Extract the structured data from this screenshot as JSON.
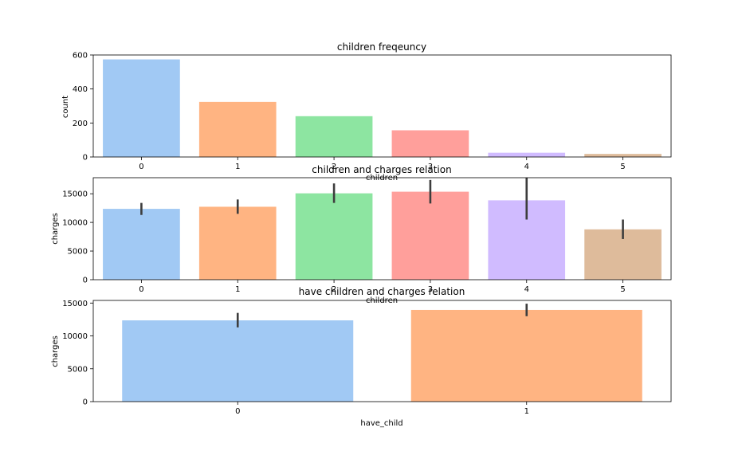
{
  "chart_data": [
    {
      "type": "bar",
      "title": "children freqeuncy",
      "xlabel": "children",
      "ylabel": "count",
      "categories": [
        "0",
        "1",
        "2",
        "3",
        "4",
        "5"
      ],
      "values": [
        574,
        324,
        240,
        157,
        25,
        18
      ],
      "ylim": [
        0,
        600
      ],
      "yticks": [
        "0",
        "200",
        "400",
        "600"
      ],
      "colors": [
        "#a1c9f4",
        "#ffb482",
        "#8de5a1",
        "#ff9f9b",
        "#d0bbff",
        "#debb9b"
      ],
      "grid": false
    },
    {
      "type": "bar",
      "title": "children and charges relation",
      "xlabel": "children",
      "ylabel": "charges",
      "categories": [
        "0",
        "1",
        "2",
        "3",
        "4",
        "5"
      ],
      "values": [
        12366,
        12731,
        15074,
        15355,
        13851,
        8786
      ],
      "error_bars": [
        [
          11300,
          13400
        ],
        [
          11500,
          14000
        ],
        [
          13400,
          16800
        ],
        [
          13300,
          17400
        ],
        [
          10500,
          17800
        ],
        [
          7100,
          10500
        ]
      ],
      "ylim": [
        0,
        17800
      ],
      "yticks": [
        "0",
        "5000",
        "10000",
        "15000"
      ],
      "colors": [
        "#a1c9f4",
        "#ffb482",
        "#8de5a1",
        "#ff9f9b",
        "#d0bbff",
        "#debb9b"
      ],
      "grid": false
    },
    {
      "type": "bar",
      "title": "have children and charges relation",
      "xlabel": "have_child",
      "ylabel": "charges",
      "categories": [
        "0",
        "1"
      ],
      "values": [
        12366,
        13950
      ],
      "error_bars": [
        [
          11300,
          13500
        ],
        [
          13000,
          14900
        ]
      ],
      "ylim": [
        0,
        15400
      ],
      "yticks": [
        "0",
        "5000",
        "10000",
        "15000"
      ],
      "colors": [
        "#a1c9f4",
        "#ffb482"
      ],
      "grid": false
    }
  ]
}
